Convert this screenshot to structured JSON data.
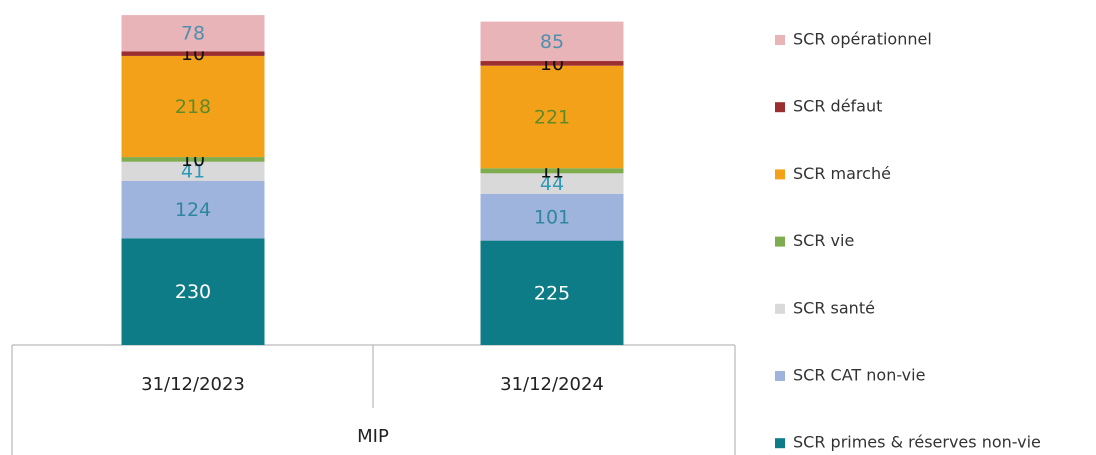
{
  "chart_data": {
    "type": "stacked_bar",
    "categories": [
      "31/12/2023",
      "31/12/2024"
    ],
    "group": "MIP",
    "series": [
      {
        "name": "SCR primes & réserves non-vie",
        "color": "#0e7c86",
        "label_color": "#ffffff",
        "values": [
          230,
          225
        ]
      },
      {
        "name": "SCR CAT non-vie",
        "color": "#9fb4dc",
        "label_color": "#2e86a0",
        "values": [
          124,
          101
        ]
      },
      {
        "name": "SCR santé",
        "color": "#d9d9d9",
        "label_color": "#2e9ab8",
        "values": [
          41,
          44
        ]
      },
      {
        "name": "SCR vie",
        "color": "#7fac4e",
        "label_color": "#111111",
        "values": [
          10,
          11
        ]
      },
      {
        "name": "SCR marché",
        "color": "#f4a11a",
        "label_color": "#5f8a2a",
        "values": [
          218,
          221
        ]
      },
      {
        "name": "SCR défaut",
        "color": "#9b2f2f",
        "label_color": "#111111",
        "values": [
          10,
          10
        ]
      },
      {
        "name": "SCR opérationnel",
        "color": "#e8b4b8",
        "label_color": "#4f8fae",
        "values": [
          78,
          85
        ]
      }
    ]
  }
}
